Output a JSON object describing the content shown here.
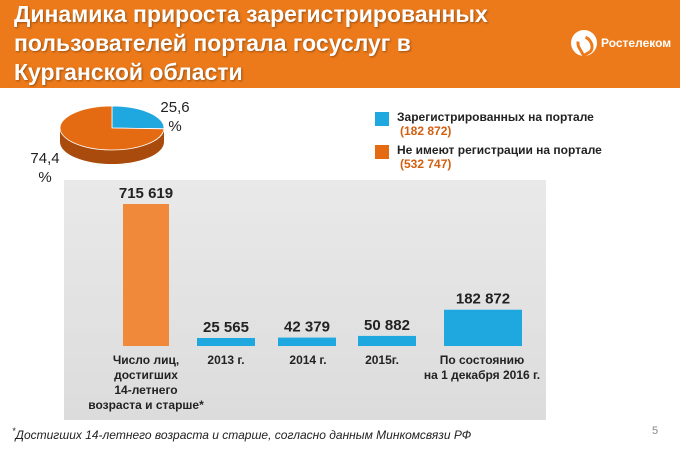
{
  "header": {
    "title": "Динамика прироста зарегистрированных\nпользователей портала госуслуг в\nКурганской области",
    "logo_text": "Ростелеком",
    "bg_color": "#ec7a1a"
  },
  "legend": {
    "items": [
      {
        "label": "Зарегистрированных на портале",
        "value": "(182 872)",
        "color": "#1fa8e0"
      },
      {
        "label": "Не имеют регистрации  на портале",
        "value": "(532 747)",
        "color": "#e56b13"
      }
    ]
  },
  "footnote": "Достигших 14-летнего возраста и старше, согласно данным Минкомсвязи РФ",
  "footnote_mark": "*",
  "page_number": "5",
  "chart_data": [
    {
      "type": "pie",
      "slices": [
        {
          "label": "25,6 %",
          "value": 25.6,
          "color": "#1fa8e0"
        },
        {
          "label": "74,4 %",
          "value": 74.4,
          "color": "#e56b13"
        }
      ]
    },
    {
      "type": "bar",
      "categories": [
        "Число лиц, достигших 14-летнего возраста и старше*",
        "2013 г.",
        "2014 г.",
        "2015г.",
        "По состоянию на 1 декабря 2016 г."
      ],
      "values": [
        715619,
        25565,
        42379,
        50882,
        182872
      ],
      "value_labels": [
        "715 619",
        "25 565",
        "42 379",
        "50 882",
        "182 872"
      ],
      "colors": [
        "#f08a3a",
        "#1fa8e0",
        "#1fa8e0",
        "#1fa8e0",
        "#1fa8e0"
      ],
      "ylim": [
        0,
        715619
      ],
      "grid": false
    }
  ]
}
